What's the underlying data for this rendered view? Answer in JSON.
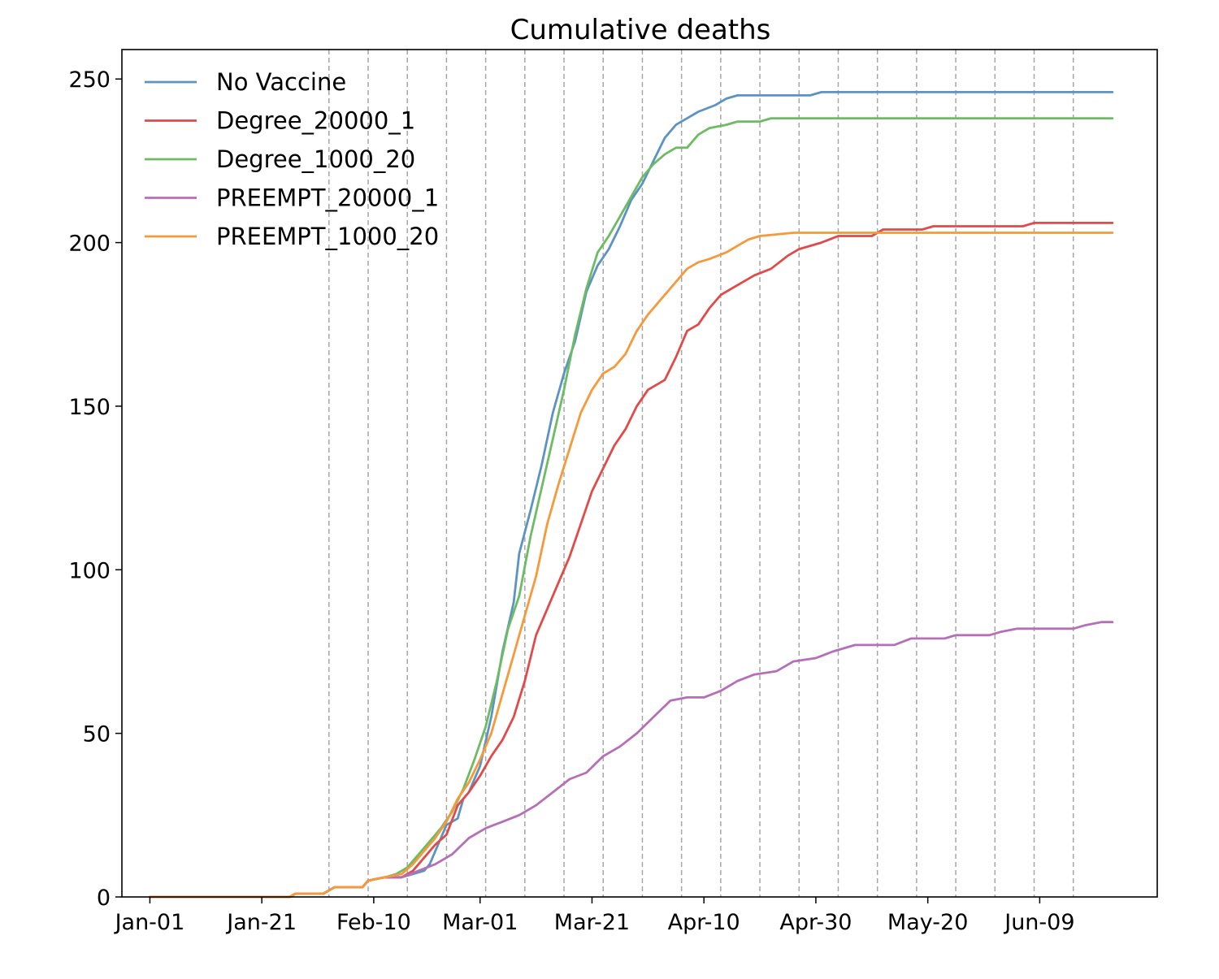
{
  "chart_data": {
    "type": "line",
    "title": "Cumulative deaths",
    "xlabel": "",
    "ylabel": "",
    "x_axis": {
      "type": "date",
      "range": [
        "2020-12-27",
        "2021-06-30"
      ],
      "ticks": [
        {
          "date": "2021-01-01",
          "label": "Jan-01"
        },
        {
          "date": "2021-01-21",
          "label": "Jan-21"
        },
        {
          "date": "2021-02-10",
          "label": "Feb-10"
        },
        {
          "date": "2021-03-01",
          "label": "Mar-01"
        },
        {
          "date": "2021-03-21",
          "label": "Mar-21"
        },
        {
          "date": "2021-04-10",
          "label": "Apr-10"
        },
        {
          "date": "2021-04-30",
          "label": "Apr-30"
        },
        {
          "date": "2021-05-20",
          "label": "May-20"
        },
        {
          "date": "2021-06-09",
          "label": "Jun-09"
        }
      ]
    },
    "y_axis": {
      "range": [
        0,
        259
      ],
      "ticks": [
        0,
        50,
        100,
        150,
        200,
        250
      ]
    },
    "vertical_reference_lines": {
      "style": "dashed",
      "color": "#a6a6a6",
      "dates": [
        "2021-02-02",
        "2021-02-09",
        "2021-02-16",
        "2021-02-23",
        "2021-03-02",
        "2021-03-09",
        "2021-03-16",
        "2021-03-23",
        "2021-03-30",
        "2021-04-06",
        "2021-04-13",
        "2021-04-20",
        "2021-04-27",
        "2021-05-04",
        "2021-05-11",
        "2021-05-18",
        "2021-05-25",
        "2021-06-01",
        "2021-06-08",
        "2021-06-15"
      ]
    },
    "grid": false,
    "legend": {
      "position": "top-left",
      "frame": false
    },
    "series": [
      {
        "name": "No Vaccine",
        "color": "#5b93c5",
        "points": [
          [
            "2021-01-01",
            0
          ],
          [
            "2021-01-26",
            0
          ],
          [
            "2021-01-27",
            1
          ],
          [
            "2021-02-01",
            1
          ],
          [
            "2021-02-03",
            3
          ],
          [
            "2021-02-08",
            3
          ],
          [
            "2021-02-09",
            5
          ],
          [
            "2021-02-12",
            6
          ],
          [
            "2021-02-15",
            6
          ],
          [
            "2021-02-17",
            7
          ],
          [
            "2021-02-19",
            8
          ],
          [
            "2021-02-20",
            10
          ],
          [
            "2021-02-22",
            18
          ],
          [
            "2021-02-23",
            22
          ],
          [
            "2021-02-25",
            24
          ],
          [
            "2021-02-26",
            30
          ],
          [
            "2021-02-27",
            32
          ],
          [
            "2021-02-28",
            36
          ],
          [
            "2021-03-01",
            40
          ],
          [
            "2021-03-03",
            55
          ],
          [
            "2021-03-05",
            75
          ],
          [
            "2021-03-07",
            90
          ],
          [
            "2021-03-08",
            105
          ],
          [
            "2021-03-10",
            118
          ],
          [
            "2021-03-12",
            132
          ],
          [
            "2021-03-14",
            148
          ],
          [
            "2021-03-16",
            160
          ],
          [
            "2021-03-18",
            170
          ],
          [
            "2021-03-20",
            185
          ],
          [
            "2021-03-22",
            193
          ],
          [
            "2021-03-24",
            198
          ],
          [
            "2021-03-26",
            205
          ],
          [
            "2021-03-28",
            213
          ],
          [
            "2021-03-30",
            218
          ],
          [
            "2021-04-01",
            225
          ],
          [
            "2021-04-03",
            232
          ],
          [
            "2021-04-05",
            236
          ],
          [
            "2021-04-07",
            238
          ],
          [
            "2021-04-09",
            240
          ],
          [
            "2021-04-12",
            242
          ],
          [
            "2021-04-14",
            244
          ],
          [
            "2021-04-16",
            245
          ],
          [
            "2021-04-29",
            245
          ],
          [
            "2021-05-01",
            246
          ],
          [
            "2021-06-22",
            246
          ]
        ]
      },
      {
        "name": "Degree_20000_1",
        "color": "#e24a4a",
        "points": [
          [
            "2021-01-01",
            0
          ],
          [
            "2021-01-26",
            0
          ],
          [
            "2021-01-27",
            1
          ],
          [
            "2021-02-01",
            1
          ],
          [
            "2021-02-03",
            3
          ],
          [
            "2021-02-08",
            3
          ],
          [
            "2021-02-09",
            5
          ],
          [
            "2021-02-12",
            6
          ],
          [
            "2021-02-15",
            6
          ],
          [
            "2021-02-17",
            8
          ],
          [
            "2021-02-19",
            12
          ],
          [
            "2021-02-21",
            16
          ],
          [
            "2021-02-23",
            19
          ],
          [
            "2021-02-25",
            28
          ],
          [
            "2021-02-27",
            32
          ],
          [
            "2021-03-01",
            37
          ],
          [
            "2021-03-03",
            43
          ],
          [
            "2021-03-05",
            48
          ],
          [
            "2021-03-07",
            55
          ],
          [
            "2021-03-09",
            66
          ],
          [
            "2021-03-11",
            80
          ],
          [
            "2021-03-13",
            88
          ],
          [
            "2021-03-15",
            96
          ],
          [
            "2021-03-17",
            104
          ],
          [
            "2021-03-19",
            114
          ],
          [
            "2021-03-21",
            124
          ],
          [
            "2021-03-23",
            131
          ],
          [
            "2021-03-25",
            138
          ],
          [
            "2021-03-27",
            143
          ],
          [
            "2021-03-29",
            150
          ],
          [
            "2021-03-31",
            155
          ],
          [
            "2021-04-03",
            158
          ],
          [
            "2021-04-05",
            165
          ],
          [
            "2021-04-07",
            173
          ],
          [
            "2021-04-09",
            175
          ],
          [
            "2021-04-11",
            180
          ],
          [
            "2021-04-13",
            184
          ],
          [
            "2021-04-15",
            186
          ],
          [
            "2021-04-17",
            188
          ],
          [
            "2021-04-19",
            190
          ],
          [
            "2021-04-22",
            192
          ],
          [
            "2021-04-25",
            196
          ],
          [
            "2021-04-27",
            198
          ],
          [
            "2021-05-01",
            200
          ],
          [
            "2021-05-04",
            202
          ],
          [
            "2021-05-10",
            202
          ],
          [
            "2021-05-12",
            204
          ],
          [
            "2021-05-19",
            204
          ],
          [
            "2021-05-21",
            205
          ],
          [
            "2021-06-06",
            205
          ],
          [
            "2021-06-08",
            206
          ],
          [
            "2021-06-22",
            206
          ]
        ]
      },
      {
        "name": "Degree_1000_20",
        "color": "#6dbb62",
        "points": [
          [
            "2021-01-01",
            0
          ],
          [
            "2021-01-26",
            0
          ],
          [
            "2021-01-27",
            1
          ],
          [
            "2021-02-01",
            1
          ],
          [
            "2021-02-03",
            3
          ],
          [
            "2021-02-08",
            3
          ],
          [
            "2021-02-09",
            5
          ],
          [
            "2021-02-12",
            6
          ],
          [
            "2021-02-14",
            7
          ],
          [
            "2021-02-16",
            9
          ],
          [
            "2021-02-18",
            13
          ],
          [
            "2021-02-20",
            17
          ],
          [
            "2021-02-22",
            21
          ],
          [
            "2021-02-24",
            26
          ],
          [
            "2021-02-26",
            33
          ],
          [
            "2021-02-28",
            42
          ],
          [
            "2021-03-02",
            52
          ],
          [
            "2021-03-04",
            66
          ],
          [
            "2021-03-06",
            82
          ],
          [
            "2021-03-08",
            92
          ],
          [
            "2021-03-10",
            110
          ],
          [
            "2021-03-12",
            125
          ],
          [
            "2021-03-14",
            140
          ],
          [
            "2021-03-16",
            155
          ],
          [
            "2021-03-18",
            172
          ],
          [
            "2021-03-20",
            186
          ],
          [
            "2021-03-22",
            197
          ],
          [
            "2021-03-24",
            202
          ],
          [
            "2021-03-26",
            208
          ],
          [
            "2021-03-28",
            214
          ],
          [
            "2021-03-30",
            220
          ],
          [
            "2021-04-01",
            224
          ],
          [
            "2021-04-03",
            227
          ],
          [
            "2021-04-05",
            229
          ],
          [
            "2021-04-07",
            229
          ],
          [
            "2021-04-09",
            233
          ],
          [
            "2021-04-11",
            235
          ],
          [
            "2021-04-14",
            236
          ],
          [
            "2021-04-16",
            237
          ],
          [
            "2021-04-20",
            237
          ],
          [
            "2021-04-22",
            238
          ],
          [
            "2021-06-22",
            238
          ]
        ]
      },
      {
        "name": "PREEMPT_20000_1",
        "color": "#b56fb8",
        "points": [
          [
            "2021-01-01",
            0
          ],
          [
            "2021-01-26",
            0
          ],
          [
            "2021-01-27",
            1
          ],
          [
            "2021-02-01",
            1
          ],
          [
            "2021-02-03",
            3
          ],
          [
            "2021-02-08",
            3
          ],
          [
            "2021-02-09",
            5
          ],
          [
            "2021-02-12",
            6
          ],
          [
            "2021-02-15",
            6
          ],
          [
            "2021-02-18",
            8
          ],
          [
            "2021-02-21",
            10
          ],
          [
            "2021-02-24",
            13
          ],
          [
            "2021-02-27",
            18
          ],
          [
            "2021-03-02",
            21
          ],
          [
            "2021-03-05",
            23
          ],
          [
            "2021-03-08",
            25
          ],
          [
            "2021-03-11",
            28
          ],
          [
            "2021-03-14",
            32
          ],
          [
            "2021-03-17",
            36
          ],
          [
            "2021-03-20",
            38
          ],
          [
            "2021-03-23",
            43
          ],
          [
            "2021-03-26",
            46
          ],
          [
            "2021-03-29",
            50
          ],
          [
            "2021-04-01",
            55
          ],
          [
            "2021-04-04",
            60
          ],
          [
            "2021-04-07",
            61
          ],
          [
            "2021-04-10",
            61
          ],
          [
            "2021-04-13",
            63
          ],
          [
            "2021-04-16",
            66
          ],
          [
            "2021-04-19",
            68
          ],
          [
            "2021-04-23",
            69
          ],
          [
            "2021-04-26",
            72
          ],
          [
            "2021-04-30",
            73
          ],
          [
            "2021-05-03",
            75
          ],
          [
            "2021-05-07",
            77
          ],
          [
            "2021-05-14",
            77
          ],
          [
            "2021-05-17",
            79
          ],
          [
            "2021-05-23",
            79
          ],
          [
            "2021-05-25",
            80
          ],
          [
            "2021-05-31",
            80
          ],
          [
            "2021-06-02",
            81
          ],
          [
            "2021-06-05",
            82
          ],
          [
            "2021-06-15",
            82
          ],
          [
            "2021-06-17",
            83
          ],
          [
            "2021-06-20",
            84
          ],
          [
            "2021-06-22",
            84
          ]
        ]
      },
      {
        "name": "PREEMPT_1000_20",
        "color": "#f5993a",
        "points": [
          [
            "2021-01-01",
            0
          ],
          [
            "2021-01-26",
            0
          ],
          [
            "2021-01-27",
            1
          ],
          [
            "2021-02-01",
            1
          ],
          [
            "2021-02-03",
            3
          ],
          [
            "2021-02-08",
            3
          ],
          [
            "2021-02-09",
            5
          ],
          [
            "2021-02-12",
            6
          ],
          [
            "2021-02-15",
            7
          ],
          [
            "2021-02-17",
            10
          ],
          [
            "2021-02-19",
            14
          ],
          [
            "2021-02-21",
            18
          ],
          [
            "2021-02-23",
            23
          ],
          [
            "2021-02-25",
            30
          ],
          [
            "2021-02-27",
            35
          ],
          [
            "2021-03-01",
            42
          ],
          [
            "2021-03-03",
            50
          ],
          [
            "2021-03-05",
            62
          ],
          [
            "2021-03-07",
            74
          ],
          [
            "2021-03-09",
            86
          ],
          [
            "2021-03-11",
            98
          ],
          [
            "2021-03-13",
            114
          ],
          [
            "2021-03-15",
            126
          ],
          [
            "2021-03-17",
            137
          ],
          [
            "2021-03-19",
            148
          ],
          [
            "2021-03-21",
            155
          ],
          [
            "2021-03-23",
            160
          ],
          [
            "2021-03-25",
            162
          ],
          [
            "2021-03-27",
            166
          ],
          [
            "2021-03-29",
            173
          ],
          [
            "2021-03-31",
            178
          ],
          [
            "2021-04-03",
            184
          ],
          [
            "2021-04-05",
            188
          ],
          [
            "2021-04-07",
            192
          ],
          [
            "2021-04-09",
            194
          ],
          [
            "2021-04-11",
            195
          ],
          [
            "2021-04-14",
            197
          ],
          [
            "2021-04-16",
            199
          ],
          [
            "2021-04-18",
            201
          ],
          [
            "2021-04-20",
            202
          ],
          [
            "2021-04-26",
            203
          ],
          [
            "2021-06-22",
            203
          ]
        ]
      }
    ]
  }
}
